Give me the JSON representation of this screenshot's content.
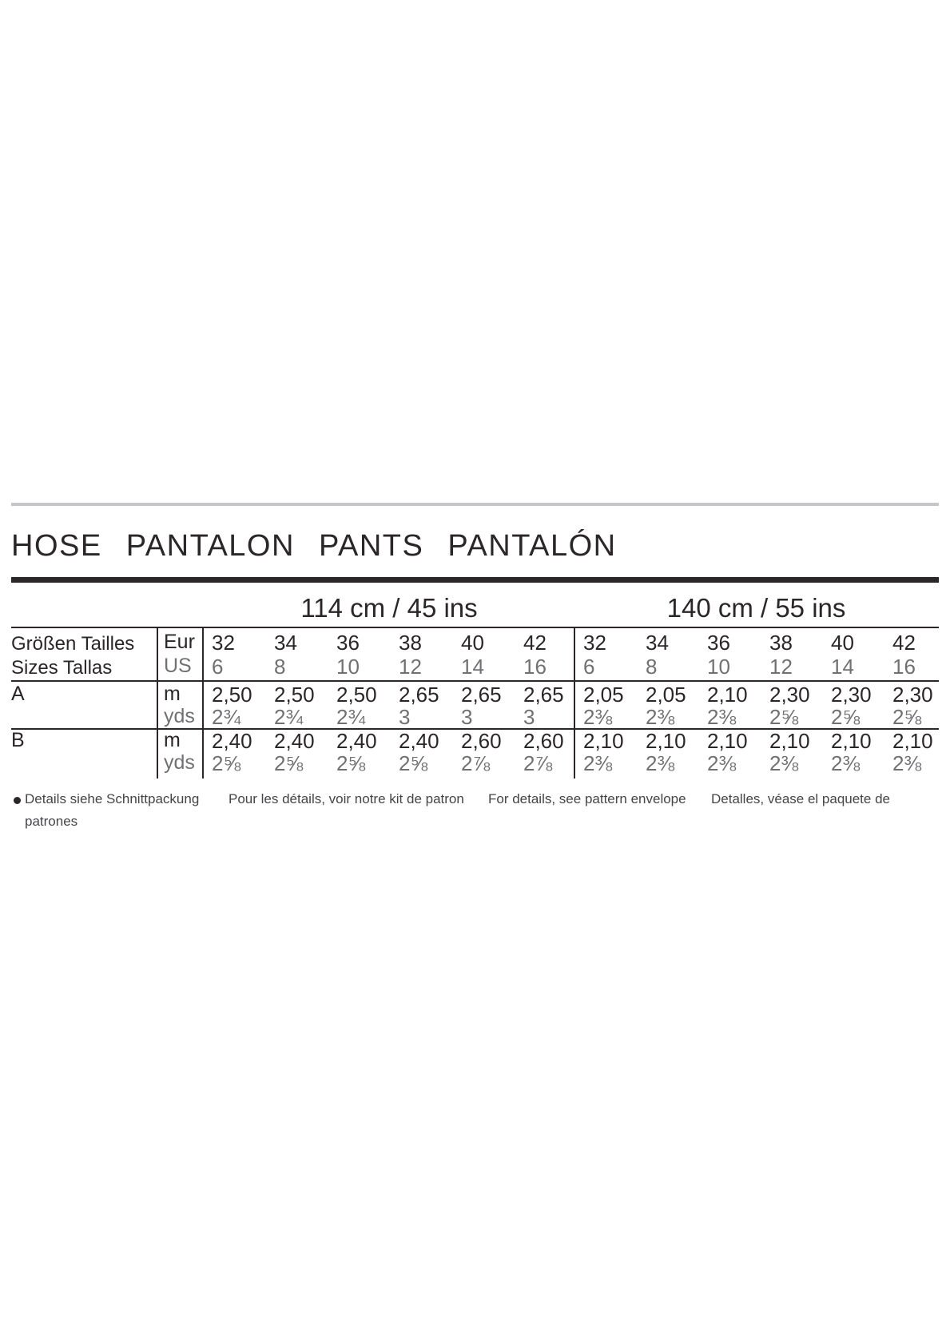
{
  "title": "HOSE PANTALON PANTS PANTALÓN",
  "colors": {
    "text_dark": "#2b2728",
    "text_gray": "#717174",
    "rule_dark": "#2b2728",
    "rule_gray": "#c6c6c8",
    "footer_text": "#454548"
  },
  "size_table": {
    "row_headers": {
      "sizes_line1": "Größen Tailles",
      "sizes_line2": "Sizes Tallas",
      "unit_line1": "Eur",
      "unit_line2": "US",
      "view_a": "A",
      "view_b": "B",
      "meters_a": "m",
      "yards_a": "yds",
      "meters_b": "m",
      "yards_b": "yds"
    },
    "sections": [
      {
        "width_label": "114 cm / 45 ins",
        "eur_sizes": [
          "32",
          "34",
          "36",
          "38",
          "40",
          "42"
        ],
        "us_sizes": [
          "6",
          "8",
          "10",
          "12",
          "14",
          "16"
        ],
        "a_m": [
          "2,50",
          "2,50",
          "2,50",
          "2,65",
          "2,65",
          "2,65"
        ],
        "a_yds": [
          "2¾",
          "2¾",
          "2¾",
          "3",
          "3",
          "3"
        ],
        "b_m": [
          "2,40",
          "2,40",
          "2,40",
          "2,40",
          "2,60",
          "2,60"
        ],
        "b_yds": [
          "2⅝",
          "2⅝",
          "2⅝",
          "2⅝",
          "2⅞",
          "2⅞"
        ]
      },
      {
        "width_label": "140 cm / 55 ins",
        "eur_sizes": [
          "32",
          "34",
          "36",
          "38",
          "40",
          "42"
        ],
        "us_sizes": [
          "6",
          "8",
          "10",
          "12",
          "14",
          "16"
        ],
        "a_m": [
          "2,05",
          "2,05",
          "2,10",
          "2,30",
          "2,30",
          "2,30"
        ],
        "a_yds": [
          "2⅜",
          "2⅜",
          "2⅜",
          "2⅝",
          "2⅝",
          "2⅝"
        ],
        "b_m": [
          "2,10",
          "2,10",
          "2,10",
          "2,10",
          "2,10",
          "2,10"
        ],
        "b_yds": [
          "2⅜",
          "2⅜",
          "2⅜",
          "2⅜",
          "2⅜",
          "2⅜"
        ]
      }
    ]
  },
  "footer": {
    "de": "Details siehe Schnittpackung",
    "fr": "Pour les détails, voir notre kit de patron",
    "en": "For details, see pattern envelope",
    "es": "Detalles, véase el paquete de",
    "es_line2": "patrones"
  }
}
